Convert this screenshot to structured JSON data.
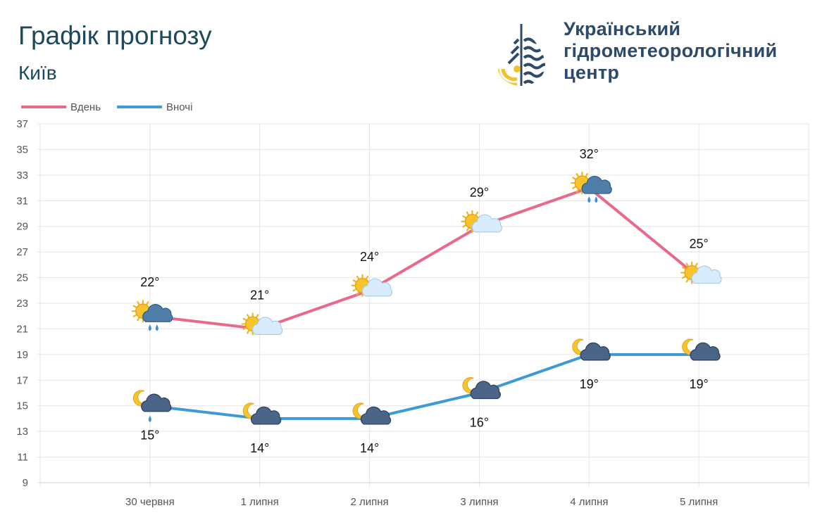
{
  "header": {
    "title": "Графік прогнозу",
    "city": "Київ"
  },
  "organization": {
    "lines": [
      "Український",
      "гідрометеорологічний",
      "центр"
    ]
  },
  "colors": {
    "day": "#e8698a",
    "night": "#3d9ad6",
    "title": "#1c4a5a",
    "org": "#2d4a6b"
  },
  "chart_data": {
    "type": "line",
    "categories": [
      "30 червня",
      "1 липня",
      "2 липня",
      "3 липня",
      "4 липня",
      "5 липня"
    ],
    "series": [
      {
        "name": "Вдень",
        "values": [
          22,
          21,
          24,
          29,
          32,
          25
        ],
        "labels": [
          "22°",
          "21°",
          "24°",
          "29°",
          "32°",
          "25°"
        ],
        "icons": [
          "sun-cloud-rain-icon",
          "sun-cloud-icon",
          "sun-cloud-icon",
          "sun-cloud-icon",
          "sun-cloud-rain-icon",
          "sun-cloud-icon"
        ]
      },
      {
        "name": "Вночі",
        "values": [
          15,
          14,
          14,
          16,
          19,
          19
        ],
        "labels": [
          "15°",
          "14°",
          "14°",
          "16°",
          "19°",
          "19°"
        ],
        "icons": [
          "moon-cloud-rain-icon",
          "moon-cloud-icon",
          "moon-cloud-icon",
          "moon-cloud-icon",
          "moon-cloud-icon",
          "moon-cloud-icon"
        ]
      }
    ],
    "ylim": [
      9,
      37
    ],
    "yticks": [
      9,
      11,
      13,
      15,
      17,
      19,
      21,
      23,
      25,
      27,
      29,
      31,
      33,
      35,
      37
    ],
    "grid": true,
    "legend": "top-left"
  }
}
